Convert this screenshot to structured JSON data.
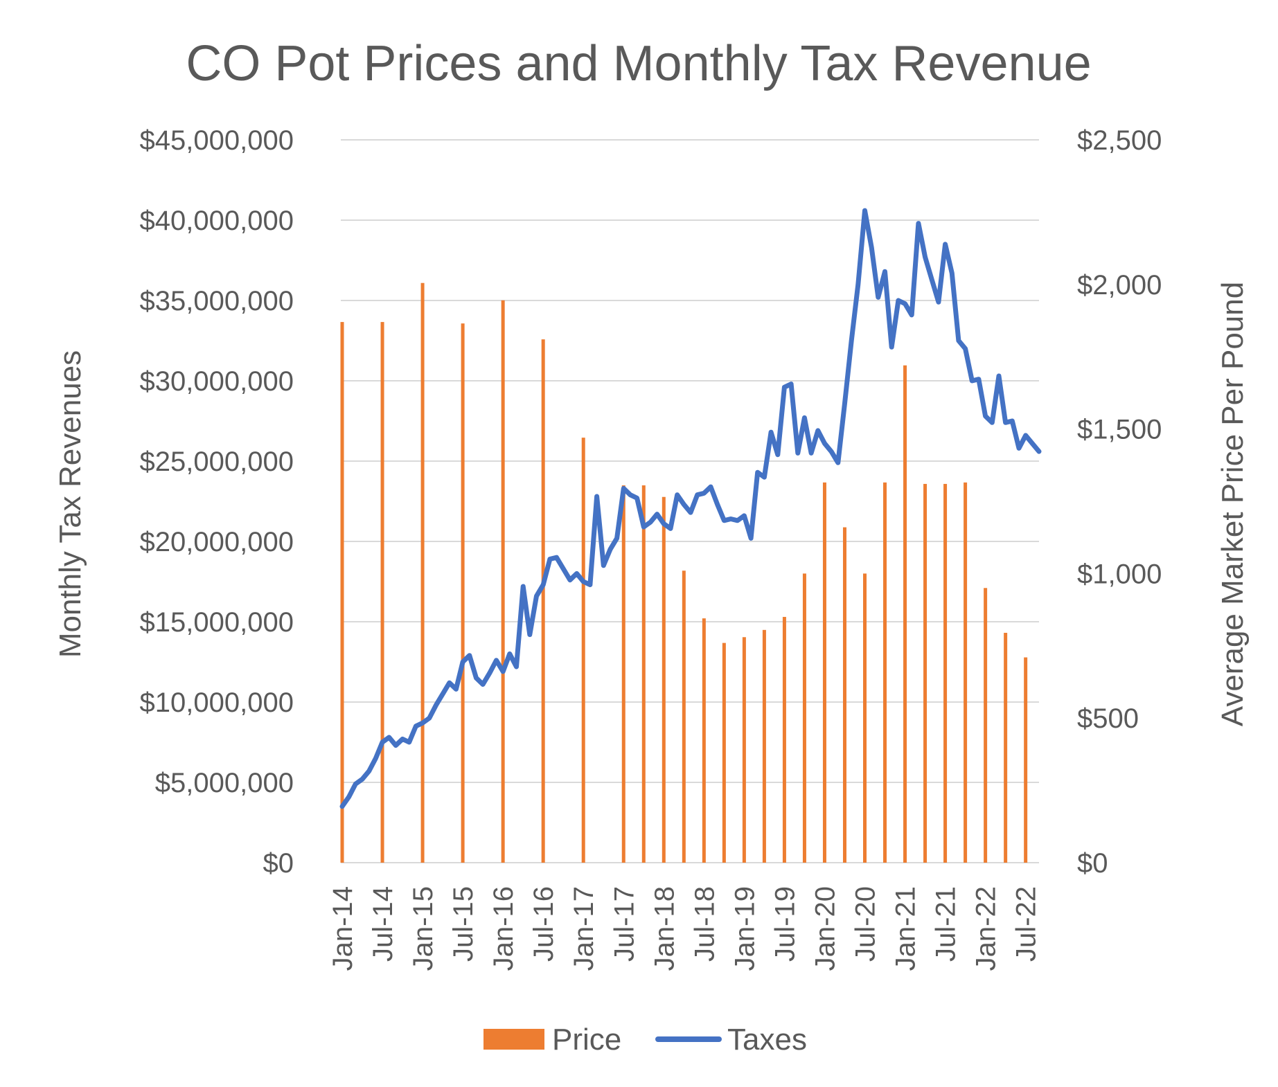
{
  "chart_data": {
    "type": "bar+line",
    "title": "CO Pot Prices and Monthly Tax Revenue",
    "y_left_label": "Monthly Tax Revenues",
    "y_right_label": "Average Market Price Per Pound",
    "y_left_range": [
      0,
      45000000
    ],
    "y_right_range": [
      0,
      2500
    ],
    "y_left_ticks": [
      "$0",
      "$5,000,000",
      "$10,000,000",
      "$15,000,000",
      "$20,000,000",
      "$25,000,000",
      "$30,000,000",
      "$35,000,000",
      "$40,000,000",
      "$45,000,000"
    ],
    "y_right_ticks": [
      "$0",
      "$500",
      "$1,000",
      "$1,500",
      "$2,000",
      "$2,500"
    ],
    "x_tick_labels": [
      "Jan-14",
      "Jul-14",
      "Jan-15",
      "Jul-15",
      "Jan-16",
      "Jul-16",
      "Jan-17",
      "Jul-17",
      "Jan-18",
      "Jul-18",
      "Jan-19",
      "Jul-19",
      "Jan-20",
      "Jul-20",
      "Jan-21",
      "Jul-21",
      "Jan-22",
      "Jul-22"
    ],
    "x_months_total": 105,
    "x_month_range": [
      0,
      104
    ],
    "gridlines": true,
    "legend_position": "bottom",
    "series": [
      {
        "name": "Price",
        "type": "bar",
        "color": "#ED7D31",
        "axis": "right",
        "points": [
          [
            0,
            1870
          ],
          [
            6,
            1870
          ],
          [
            12,
            2005
          ],
          [
            18,
            1865
          ],
          [
            24,
            1945
          ],
          [
            30,
            1810
          ],
          [
            36,
            1470
          ],
          [
            42,
            1305
          ],
          [
            45,
            1305
          ],
          [
            48,
            1265
          ],
          [
            51,
            1010
          ],
          [
            54,
            845
          ],
          [
            57,
            760
          ],
          [
            60,
            780
          ],
          [
            63,
            805
          ],
          [
            66,
            850
          ],
          [
            69,
            1000
          ],
          [
            72,
            1315
          ],
          [
            75,
            1160
          ],
          [
            78,
            1000
          ],
          [
            81,
            1315
          ],
          [
            84,
            1720
          ],
          [
            87,
            1310
          ],
          [
            90,
            1310
          ],
          [
            93,
            1315
          ],
          [
            96,
            950
          ],
          [
            99,
            795
          ],
          [
            102,
            710
          ]
        ]
      },
      {
        "name": "Taxes",
        "type": "line",
        "color": "#4472C4",
        "axis": "left",
        "points": [
          [
            0,
            3500000
          ],
          [
            1,
            4100000
          ],
          [
            2,
            4900000
          ],
          [
            3,
            5200000
          ],
          [
            4,
            5700000
          ],
          [
            5,
            6500000
          ],
          [
            6,
            7500000
          ],
          [
            7,
            7800000
          ],
          [
            8,
            7300000
          ],
          [
            9,
            7700000
          ],
          [
            10,
            7500000
          ],
          [
            11,
            8500000
          ],
          [
            12,
            8700000
          ],
          [
            13,
            9000000
          ],
          [
            14,
            9800000
          ],
          [
            15,
            10500000
          ],
          [
            16,
            11200000
          ],
          [
            17,
            10800000
          ],
          [
            18,
            12500000
          ],
          [
            19,
            12900000
          ],
          [
            20,
            11500000
          ],
          [
            21,
            11100000
          ],
          [
            22,
            11800000
          ],
          [
            23,
            12600000
          ],
          [
            24,
            11900000
          ],
          [
            25,
            13000000
          ],
          [
            26,
            12200000
          ],
          [
            27,
            17200000
          ],
          [
            28,
            14200000
          ],
          [
            29,
            16600000
          ],
          [
            30,
            17300000
          ],
          [
            31,
            18900000
          ],
          [
            32,
            19000000
          ],
          [
            33,
            18300000
          ],
          [
            34,
            17600000
          ],
          [
            35,
            18000000
          ],
          [
            36,
            17500000
          ],
          [
            37,
            17300000
          ],
          [
            38,
            22800000
          ],
          [
            39,
            18500000
          ],
          [
            40,
            19500000
          ],
          [
            41,
            20200000
          ],
          [
            42,
            23300000
          ],
          [
            43,
            22900000
          ],
          [
            44,
            22700000
          ],
          [
            45,
            20900000
          ],
          [
            46,
            21200000
          ],
          [
            47,
            21700000
          ],
          [
            48,
            21100000
          ],
          [
            49,
            20800000
          ],
          [
            50,
            22900000
          ],
          [
            51,
            22300000
          ],
          [
            52,
            21800000
          ],
          [
            53,
            22900000
          ],
          [
            54,
            23000000
          ],
          [
            55,
            23400000
          ],
          [
            56,
            22300000
          ],
          [
            57,
            21300000
          ],
          [
            58,
            21400000
          ],
          [
            59,
            21300000
          ],
          [
            60,
            21600000
          ],
          [
            61,
            20200000
          ],
          [
            62,
            24300000
          ],
          [
            63,
            24000000
          ],
          [
            64,
            26800000
          ],
          [
            65,
            25400000
          ],
          [
            66,
            29600000
          ],
          [
            67,
            29800000
          ],
          [
            68,
            25500000
          ],
          [
            69,
            27700000
          ],
          [
            70,
            25500000
          ],
          [
            71,
            26900000
          ],
          [
            72,
            26100000
          ],
          [
            73,
            25600000
          ],
          [
            74,
            24900000
          ],
          [
            75,
            28600000
          ],
          [
            76,
            32500000
          ],
          [
            77,
            36000000
          ],
          [
            78,
            40600000
          ],
          [
            79,
            38300000
          ],
          [
            80,
            35200000
          ],
          [
            81,
            36800000
          ],
          [
            82,
            32100000
          ],
          [
            83,
            35000000
          ],
          [
            84,
            34800000
          ],
          [
            85,
            34100000
          ],
          [
            86,
            39800000
          ],
          [
            87,
            37700000
          ],
          [
            88,
            36300000
          ],
          [
            89,
            34900000
          ],
          [
            90,
            38500000
          ],
          [
            91,
            36700000
          ],
          [
            92,
            32500000
          ],
          [
            93,
            32000000
          ],
          [
            94,
            30000000
          ],
          [
            95,
            30100000
          ],
          [
            96,
            27800000
          ],
          [
            97,
            27400000
          ],
          [
            98,
            30300000
          ],
          [
            99,
            27400000
          ],
          [
            100,
            27500000
          ],
          [
            101,
            25800000
          ],
          [
            102,
            26600000
          ],
          [
            103,
            26100000
          ],
          [
            104,
            25600000
          ]
        ]
      }
    ]
  }
}
